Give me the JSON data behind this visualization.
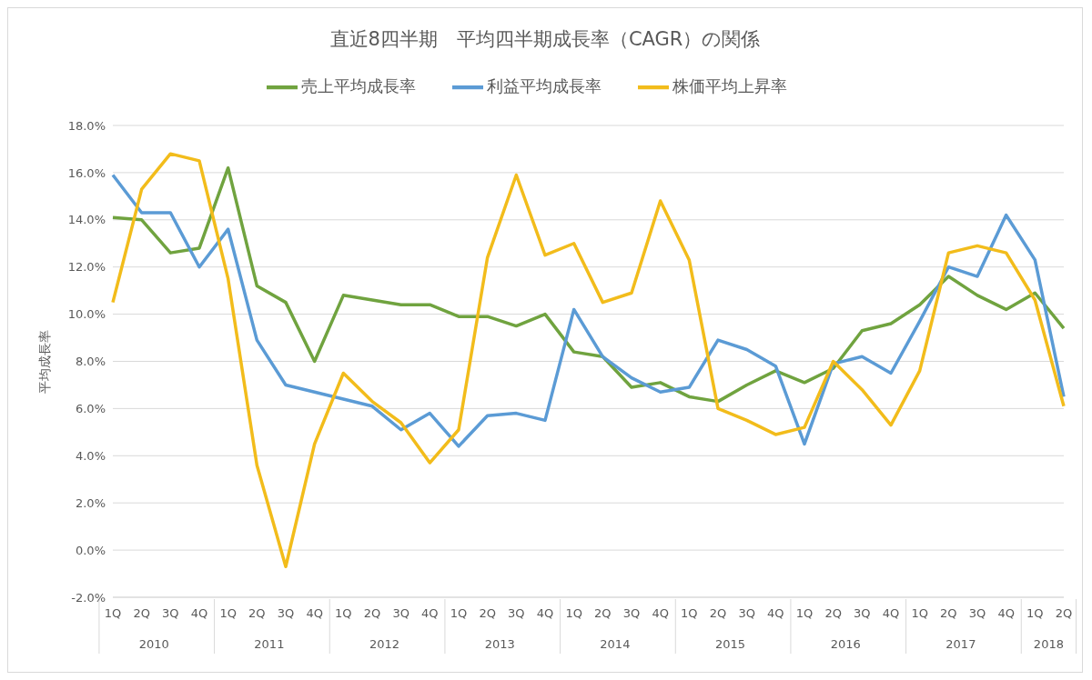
{
  "chart_data": {
    "type": "line",
    "title": "直近8四半期　平均四半期成長率（CAGR）の関係",
    "ylabel": "平均成長率",
    "categories": [
      "1Q",
      "2Q",
      "3Q",
      "4Q",
      "1Q",
      "2Q",
      "3Q",
      "4Q",
      "1Q",
      "2Q",
      "3Q",
      "4Q",
      "1Q",
      "2Q",
      "3Q",
      "4Q",
      "1Q",
      "2Q",
      "3Q",
      "4Q",
      "1Q",
      "2Q",
      "3Q",
      "4Q",
      "1Q",
      "2Q",
      "3Q",
      "4Q",
      "1Q",
      "2Q",
      "3Q",
      "4Q",
      "1Q",
      "2Q"
    ],
    "annotations": [
      "2010",
      "2011",
      "2012",
      "2013",
      "2014",
      "2015",
      "2016",
      "2017",
      "2018"
    ],
    "series": [
      {
        "name": "売上平均成長率",
        "color": "#70a33f",
        "values": [
          14.1,
          14.0,
          12.6,
          12.8,
          16.2,
          11.2,
          10.5,
          8.0,
          10.8,
          10.6,
          10.4,
          10.4,
          9.9,
          9.9,
          9.5,
          10.0,
          8.4,
          8.2,
          6.9,
          7.1,
          6.5,
          6.3,
          7.0,
          7.6,
          7.1,
          7.7,
          9.3,
          9.6,
          10.4,
          11.6,
          10.8,
          10.2,
          10.9,
          9.4
        ]
      },
      {
        "name": "利益平均成長率",
        "color": "#5b9bd5",
        "values": [
          15.9,
          14.3,
          14.3,
          12.0,
          13.6,
          8.9,
          7.0,
          6.7,
          6.4,
          6.1,
          5.1,
          5.8,
          4.4,
          5.7,
          5.8,
          5.5,
          10.2,
          8.2,
          7.3,
          6.7,
          6.9,
          8.9,
          8.5,
          7.8,
          4.5,
          7.9,
          8.2,
          7.5,
          9.7,
          12.0,
          11.6,
          14.2,
          12.3,
          6.5
        ]
      },
      {
        "name": "株価平均上昇率",
        "color": "#f2bc1b",
        "values": [
          10.5,
          15.3,
          16.8,
          16.5,
          11.5,
          3.6,
          -0.7,
          4.5,
          7.5,
          6.3,
          5.4,
          3.7,
          5.1,
          12.4,
          15.9,
          12.5,
          13.0,
          10.5,
          10.9,
          14.8,
          12.3,
          6.0,
          5.5,
          4.9,
          5.2,
          8.0,
          6.8,
          5.3,
          7.6,
          12.6,
          12.9,
          12.6,
          10.6,
          6.1
        ]
      }
    ],
    "ylim": [
      -2,
      18
    ],
    "yticks": [
      {
        "value": -2,
        "label": "-2.0%"
      },
      {
        "value": 0,
        "label": "0.0%"
      },
      {
        "value": 2,
        "label": "2.0%"
      },
      {
        "value": 4,
        "label": "4.0%"
      },
      {
        "value": 6,
        "label": "6.0%"
      },
      {
        "value": 8,
        "label": "8.0%"
      },
      {
        "value": 10,
        "label": "10.0%"
      },
      {
        "value": 12,
        "label": "12.0%"
      },
      {
        "value": 14,
        "label": "14.0%"
      },
      {
        "value": 16,
        "label": "16.0%"
      },
      {
        "value": 18,
        "label": "18.0%"
      }
    ],
    "grid": "y",
    "legend": "top",
    "marker": "none",
    "line_style": "solid"
  }
}
